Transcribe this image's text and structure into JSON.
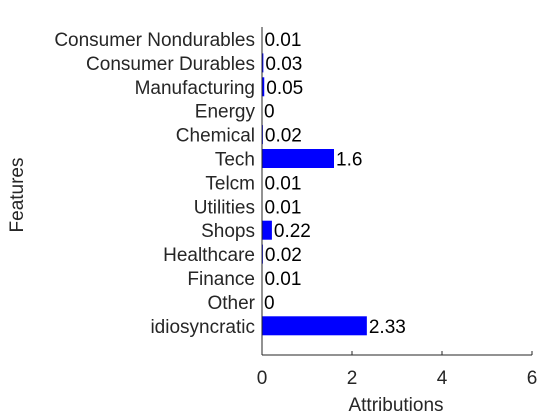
{
  "chart_data": {
    "type": "bar",
    "orientation": "horizontal",
    "categories": [
      "Consumer Nondurables",
      "Consumer Durables",
      "Manufacturing",
      "Energy",
      "Chemical",
      "Tech",
      "Telcm",
      "Utilities",
      "Shops",
      "Healthcare",
      "Finance",
      "Other",
      "idiosyncratic"
    ],
    "values": [
      0.01,
      0.03,
      0.05,
      0,
      0.02,
      1.6,
      0.01,
      0.01,
      0.22,
      0.02,
      0.01,
      0,
      2.33
    ],
    "value_labels": [
      "0.01",
      "0.03",
      "0.05",
      "0",
      "0.02",
      "1.6",
      "0.01",
      "0.01",
      "0.22",
      "0.02",
      "0.01",
      "0",
      "2.33"
    ],
    "xlabel": "Attributions",
    "ylabel": "Features",
    "xlim": [
      0,
      6
    ],
    "xticks": [
      0,
      2,
      4,
      6
    ],
    "bar_color": "#0000ff",
    "grid": false
  }
}
